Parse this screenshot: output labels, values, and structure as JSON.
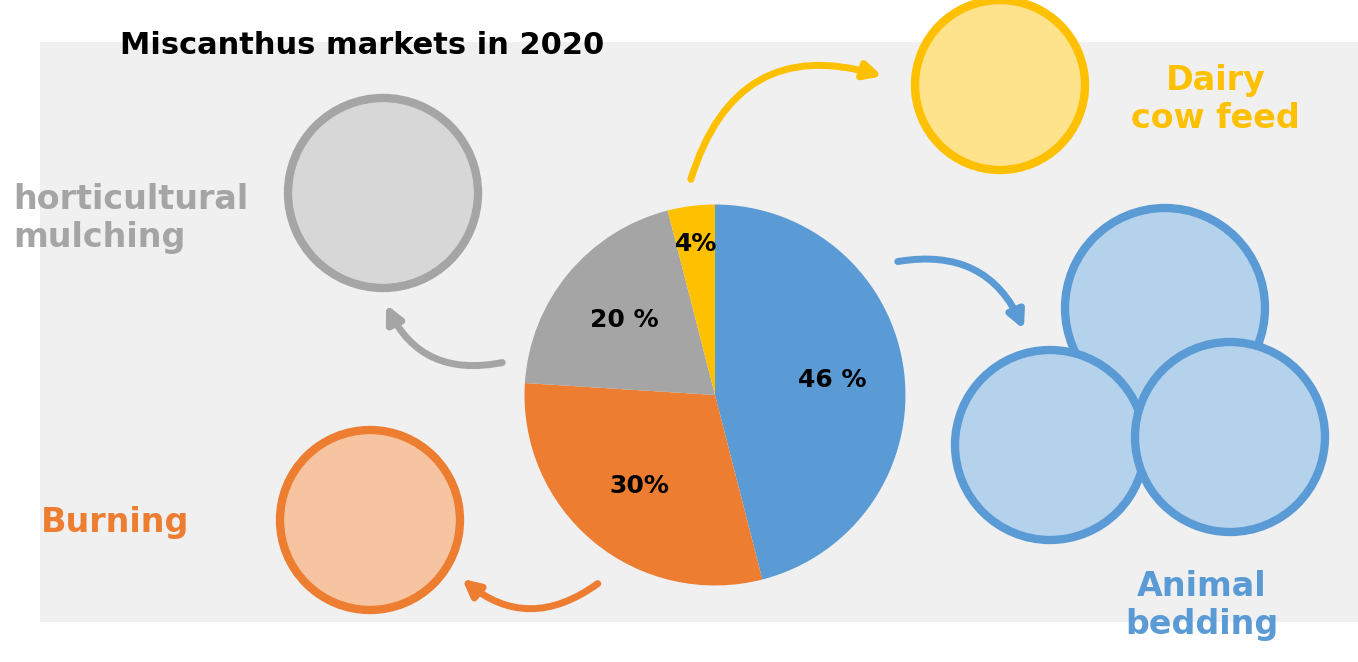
{
  "chart_data": {
    "type": "pie",
    "title": "Miscanthus markets in 2020",
    "categories": [
      "Animal\nbedding",
      "Burning",
      "horticultural\nmulching",
      "Dairy\ncow feed"
    ],
    "values": [
      46,
      30,
      20,
      4
    ],
    "value_labels": [
      "46 %",
      "30%",
      "20 %",
      "4%"
    ],
    "colors": [
      "#5B9BD5",
      "#ED7D31",
      "#A5A5A5",
      "#FFC000"
    ],
    "data_labels": true
  }
}
